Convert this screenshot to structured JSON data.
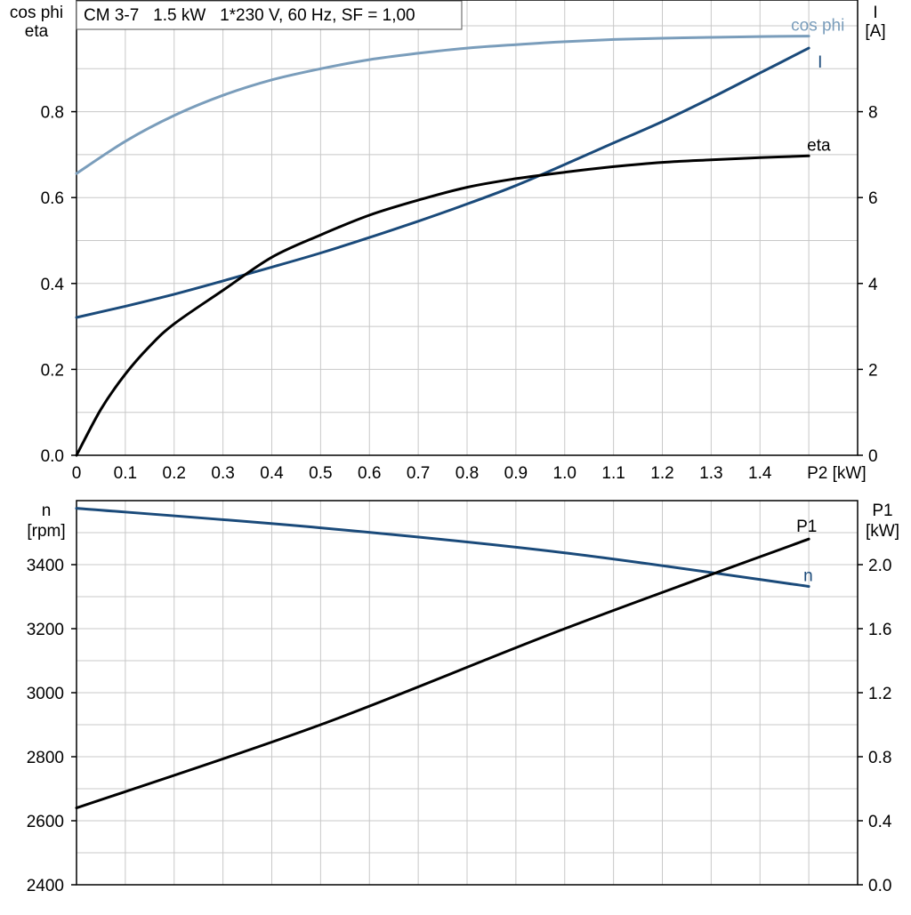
{
  "title": "CM 3-7   1.5 kW   1*230 V, 60 Hz, SF = 1,00",
  "colors": {
    "cos_phi": "#7a9dbb",
    "current": "#1a4a7a",
    "eta": "#000000",
    "speed": "#1a4a7a",
    "p1": "#000000",
    "grid": "#c8c8c8",
    "frame": "#000000"
  },
  "chart_data": [
    {
      "type": "line",
      "x_axis": {
        "label_suffix": "P2 [kW]",
        "ticks": [
          "0",
          "0.1",
          "0.2",
          "0.3",
          "0.4",
          "0.5",
          "0.6",
          "0.7",
          "0.8",
          "0.9",
          "1.0",
          "1.1",
          "1.2",
          "1.3",
          "1.4"
        ],
        "range": [
          0,
          1.6
        ]
      },
      "y_left": {
        "label_top": "cos phi",
        "label_bottom": "eta",
        "ticks": [
          "0.0",
          "0.2",
          "0.4",
          "0.6",
          "0.8"
        ],
        "range": [
          0,
          1.06
        ]
      },
      "y_right": {
        "label_top": "I",
        "label_bottom": "[A]",
        "ticks": [
          "0",
          "2",
          "4",
          "6",
          "8"
        ],
        "range": [
          0,
          10.6
        ]
      },
      "grid": true,
      "series": [
        {
          "name": "cos phi",
          "axis": "left",
          "color_key": "cos_phi",
          "x": [
            0,
            0.1,
            0.2,
            0.3,
            0.4,
            0.5,
            0.6,
            0.7,
            0.8,
            0.9,
            1.0,
            1.1,
            1.2,
            1.3,
            1.4,
            1.5
          ],
          "y": [
            0.656,
            0.731,
            0.791,
            0.838,
            0.874,
            0.9,
            0.921,
            0.936,
            0.948,
            0.956,
            0.963,
            0.968,
            0.971,
            0.973,
            0.975,
            0.976
          ]
        },
        {
          "name": "I",
          "axis": "right",
          "color_key": "current",
          "x": [
            0,
            0.1,
            0.2,
            0.3,
            0.4,
            0.5,
            0.6,
            0.7,
            0.8,
            0.9,
            1.0,
            1.1,
            1.2,
            1.3,
            1.4,
            1.5
          ],
          "y": [
            3.21,
            3.47,
            3.75,
            4.06,
            4.38,
            4.71,
            5.07,
            5.45,
            5.85,
            6.28,
            6.77,
            7.27,
            7.77,
            8.32,
            8.9,
            9.48
          ]
        },
        {
          "name": "eta",
          "axis": "left",
          "color_key": "eta",
          "x": [
            0,
            0.05,
            0.1,
            0.15,
            0.2,
            0.3,
            0.4,
            0.5,
            0.6,
            0.7,
            0.8,
            0.9,
            1.0,
            1.1,
            1.2,
            1.3,
            1.4,
            1.5
          ],
          "y": [
            0.0,
            0.107,
            0.189,
            0.254,
            0.306,
            0.384,
            0.461,
            0.513,
            0.559,
            0.594,
            0.624,
            0.644,
            0.659,
            0.672,
            0.682,
            0.688,
            0.693,
            0.697
          ]
        }
      ]
    },
    {
      "type": "line",
      "x_axis": {
        "range": [
          0,
          1.6
        ]
      },
      "y_left": {
        "label_top": "n",
        "label_bottom": "[rpm]",
        "ticks": [
          "2400",
          "2600",
          "2800",
          "3000",
          "3200",
          "3400"
        ],
        "range": [
          2400,
          3600
        ]
      },
      "y_right": {
        "label_top": "P1",
        "label_bottom": "[kW]",
        "ticks": [
          "0.0",
          "0.4",
          "0.8",
          "1.2",
          "1.6",
          "2.0"
        ],
        "range": [
          0,
          2.4
        ]
      },
      "grid": true,
      "series": [
        {
          "name": "n",
          "axis": "left",
          "color_key": "speed",
          "x": [
            0,
            0.5,
            1.0,
            1.5
          ],
          "y": [
            3576,
            3515,
            3437,
            3332
          ]
        },
        {
          "name": "P1",
          "axis": "right",
          "color_key": "p1",
          "x": [
            0,
            0.5,
            1.0,
            1.5
          ],
          "y": [
            0.48,
            1.0,
            1.6,
            2.16
          ]
        }
      ]
    }
  ]
}
